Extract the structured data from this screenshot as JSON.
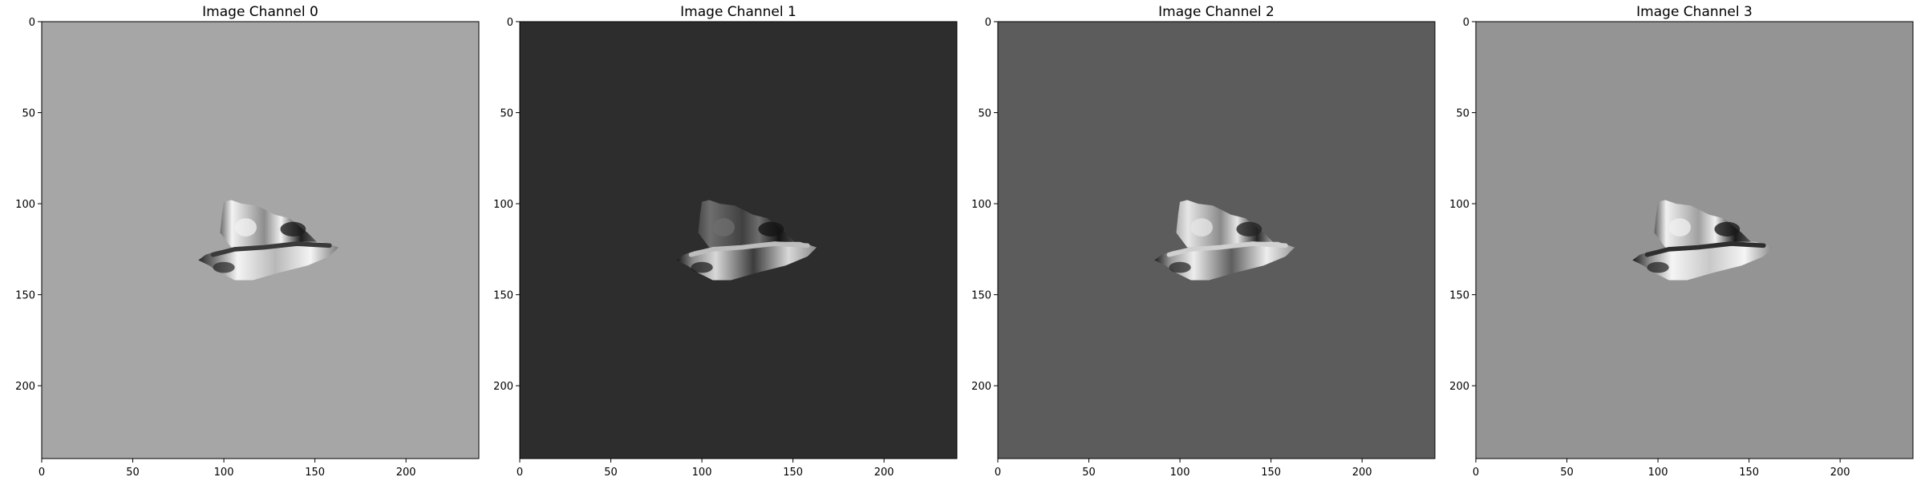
{
  "figure": {
    "background": "#ffffff"
  },
  "chart_data": [
    {
      "type": "heatmap",
      "title": "Image Channel 0",
      "xlabel": "",
      "ylabel": "",
      "xlim": [
        0,
        240
      ],
      "ylim": [
        240,
        0
      ],
      "xticks": [
        0,
        50,
        100,
        150,
        200
      ],
      "yticks": [
        0,
        50,
        100,
        150,
        200
      ],
      "grid": false,
      "colormap": "gray",
      "background_color": "#a6a6a6",
      "region": {
        "x_extent": [
          85,
          163
        ],
        "y_extent": [
          98,
          143
        ]
      },
      "upper_lobe": {
        "dark": "#1e1e1e",
        "light": "#f2f2f2",
        "mid": "#8c8c8c",
        "edge_mid": "#6a6a6a"
      },
      "lower_lobe": {
        "dark": "#262626",
        "light": "#f4f4f4",
        "mid": "#b8b8b8",
        "edge_mid": "#7a7a7a"
      },
      "band_color": "#3a3a3a"
    },
    {
      "type": "heatmap",
      "title": "Image Channel 1",
      "xlabel": "",
      "ylabel": "",
      "xlim": [
        0,
        240
      ],
      "ylim": [
        240,
        0
      ],
      "xticks": [
        0,
        50,
        100,
        150,
        200
      ],
      "yticks": [
        0,
        50,
        100,
        150,
        200
      ],
      "grid": false,
      "colormap": "gray",
      "background_color": "#2d2d2d",
      "region": {
        "x_extent": [
          85,
          163
        ],
        "y_extent": [
          98,
          143
        ]
      },
      "upper_lobe": {
        "dark": "#141414",
        "light": "#6e6e6e",
        "mid": "#404040",
        "edge_mid": "#4a4a4a"
      },
      "lower_lobe": {
        "dark": "#151515",
        "light": "#d8d8d8",
        "mid": "#3c3c3c",
        "edge_mid": "#8a8a8a"
      },
      "band_color": "#bdbdbd"
    },
    {
      "type": "heatmap",
      "title": "Image Channel 2",
      "xlabel": "",
      "ylabel": "",
      "xlim": [
        0,
        240
      ],
      "ylim": [
        240,
        0
      ],
      "xticks": [
        0,
        50,
        100,
        150,
        200
      ],
      "yticks": [
        0,
        50,
        100,
        150,
        200
      ],
      "grid": false,
      "colormap": "gray",
      "background_color": "#5c5c5c",
      "region": {
        "x_extent": [
          85,
          163
        ],
        "y_extent": [
          98,
          143
        ]
      },
      "upper_lobe": {
        "dark": "#242424",
        "light": "#e6e6e6",
        "mid": "#8a8a8a",
        "edge_mid": "#b5b5b5"
      },
      "lower_lobe": {
        "dark": "#1e1e1e",
        "light": "#ededed",
        "mid": "#5e5e5e",
        "edge_mid": "#9a9a9a"
      },
      "band_color": "#d0d0d0"
    },
    {
      "type": "heatmap",
      "title": "Image Channel 3",
      "xlabel": "",
      "ylabel": "",
      "xlim": [
        0,
        240
      ],
      "ylim": [
        240,
        0
      ],
      "xticks": [
        0,
        50,
        100,
        150,
        200
      ],
      "yticks": [
        0,
        50,
        100,
        150,
        200
      ],
      "grid": false,
      "colormap": "gray",
      "background_color": "#949494",
      "region": {
        "x_extent": [
          85,
          163
        ],
        "y_extent": [
          98,
          143
        ]
      },
      "upper_lobe": {
        "dark": "#1a1a1a",
        "light": "#f0f0f0",
        "mid": "#a0a0a0",
        "edge_mid": "#5c5c5c"
      },
      "lower_lobe": {
        "dark": "#1c1c1c",
        "light": "#f5f5f5",
        "mid": "#c8c8c8",
        "edge_mid": "#8a8a8a"
      },
      "band_color": "#2e2e2e"
    }
  ]
}
